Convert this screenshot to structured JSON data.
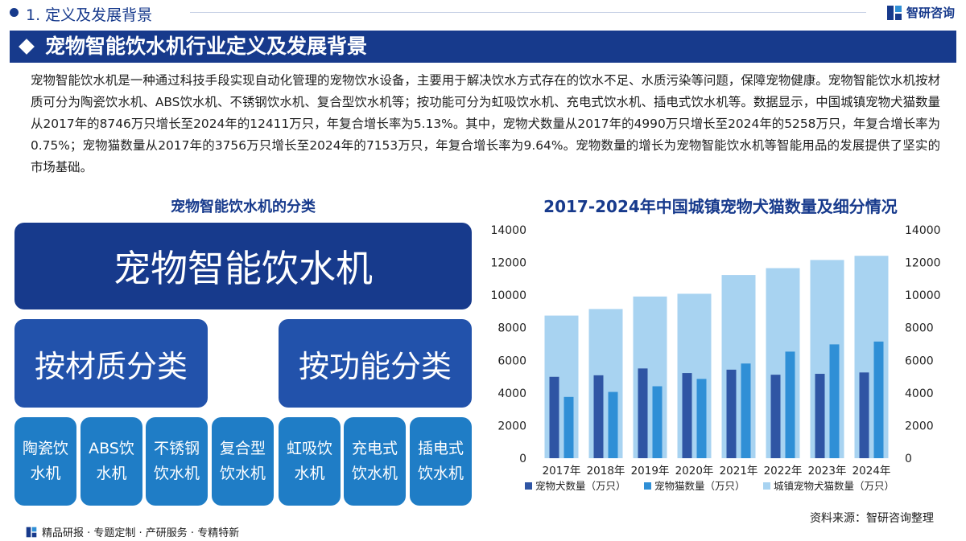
{
  "header": {
    "section": "1. 定义及发展背景",
    "brand": "智研咨询"
  },
  "title": "宠物智能饮水机行业定义及发展背景",
  "intro": "宠物智能饮水机是一种通过科技手段实现自动化管理的宠物饮水设备，主要用于解决饮水方式存在的饮水不足、水质污染等问题，保障宠物健康。宠物智能饮水机按材质可分为陶瓷饮水机、ABS饮水机、不锈钢饮水机、复合型饮水机等；按功能可分为虹吸饮水机、充电式饮水机、插电式饮水机等。数据显示，中国城镇宠物犬猫数量从2017年的8746万只增长至2024年的12411万只，年复合增长率为5.13%。其中，宠物犬数量从2017年的4990万只增长至2024年的5258万只，年复合增长率为0.75%；宠物猫数量从2017年的3756万只增长至2024年的7153万只，年复合增长率为9.64%。宠物数量的增长为宠物智能饮水机等智能用品的发展提供了坚实的市场基础。",
  "classification": {
    "heading": "宠物智能饮水机的分类",
    "root": "宠物智能饮水机",
    "groups": [
      {
        "label": "按材质分类",
        "items": [
          "陶瓷饮水机",
          "ABS饮水机",
          "不锈钢饮水机",
          "复合型饮水机"
        ]
      },
      {
        "label": "按功能分类",
        "items": [
          "虹吸饮水机",
          "充电式饮水机",
          "插电式饮水机"
        ]
      }
    ]
  },
  "colors": {
    "navy": "#173a8c",
    "dog": "#2f55a4",
    "cat": "#2f8fd6",
    "total": "#a8d3f1"
  },
  "chart_data": {
    "type": "bar",
    "title": "2017-2024年中国城镇宠物犬猫数量及细分情况",
    "categories": [
      "2017年",
      "2018年",
      "2019年",
      "2020年",
      "2021年",
      "2022年",
      "2023年",
      "2024年"
    ],
    "series": [
      {
        "name": "宠物犬数量（万只）",
        "values": [
          4990,
          5085,
          5503,
          5222,
          5429,
          5119,
          5175,
          5258
        ]
      },
      {
        "name": "宠物猫数量（万只）",
        "values": [
          3756,
          4064,
          4412,
          4862,
          5806,
          6536,
          6980,
          7153
        ]
      },
      {
        "name": "城镇宠物犬猫数量（万只）",
        "values": [
          8746,
          9149,
          9915,
          10084,
          11235,
          11655,
          12155,
          12411
        ]
      }
    ],
    "ylim": [
      0,
      14000
    ],
    "yticks": [
      0,
      2000,
      4000,
      6000,
      8000,
      10000,
      12000,
      14000
    ],
    "y2lim": [
      0,
      14000
    ],
    "legend_position": "bottom",
    "grid": false
  },
  "source": "资料来源：智研咨询整理",
  "footer": "精品研报 · 专题定制 · 产研服务 · 专精特新"
}
